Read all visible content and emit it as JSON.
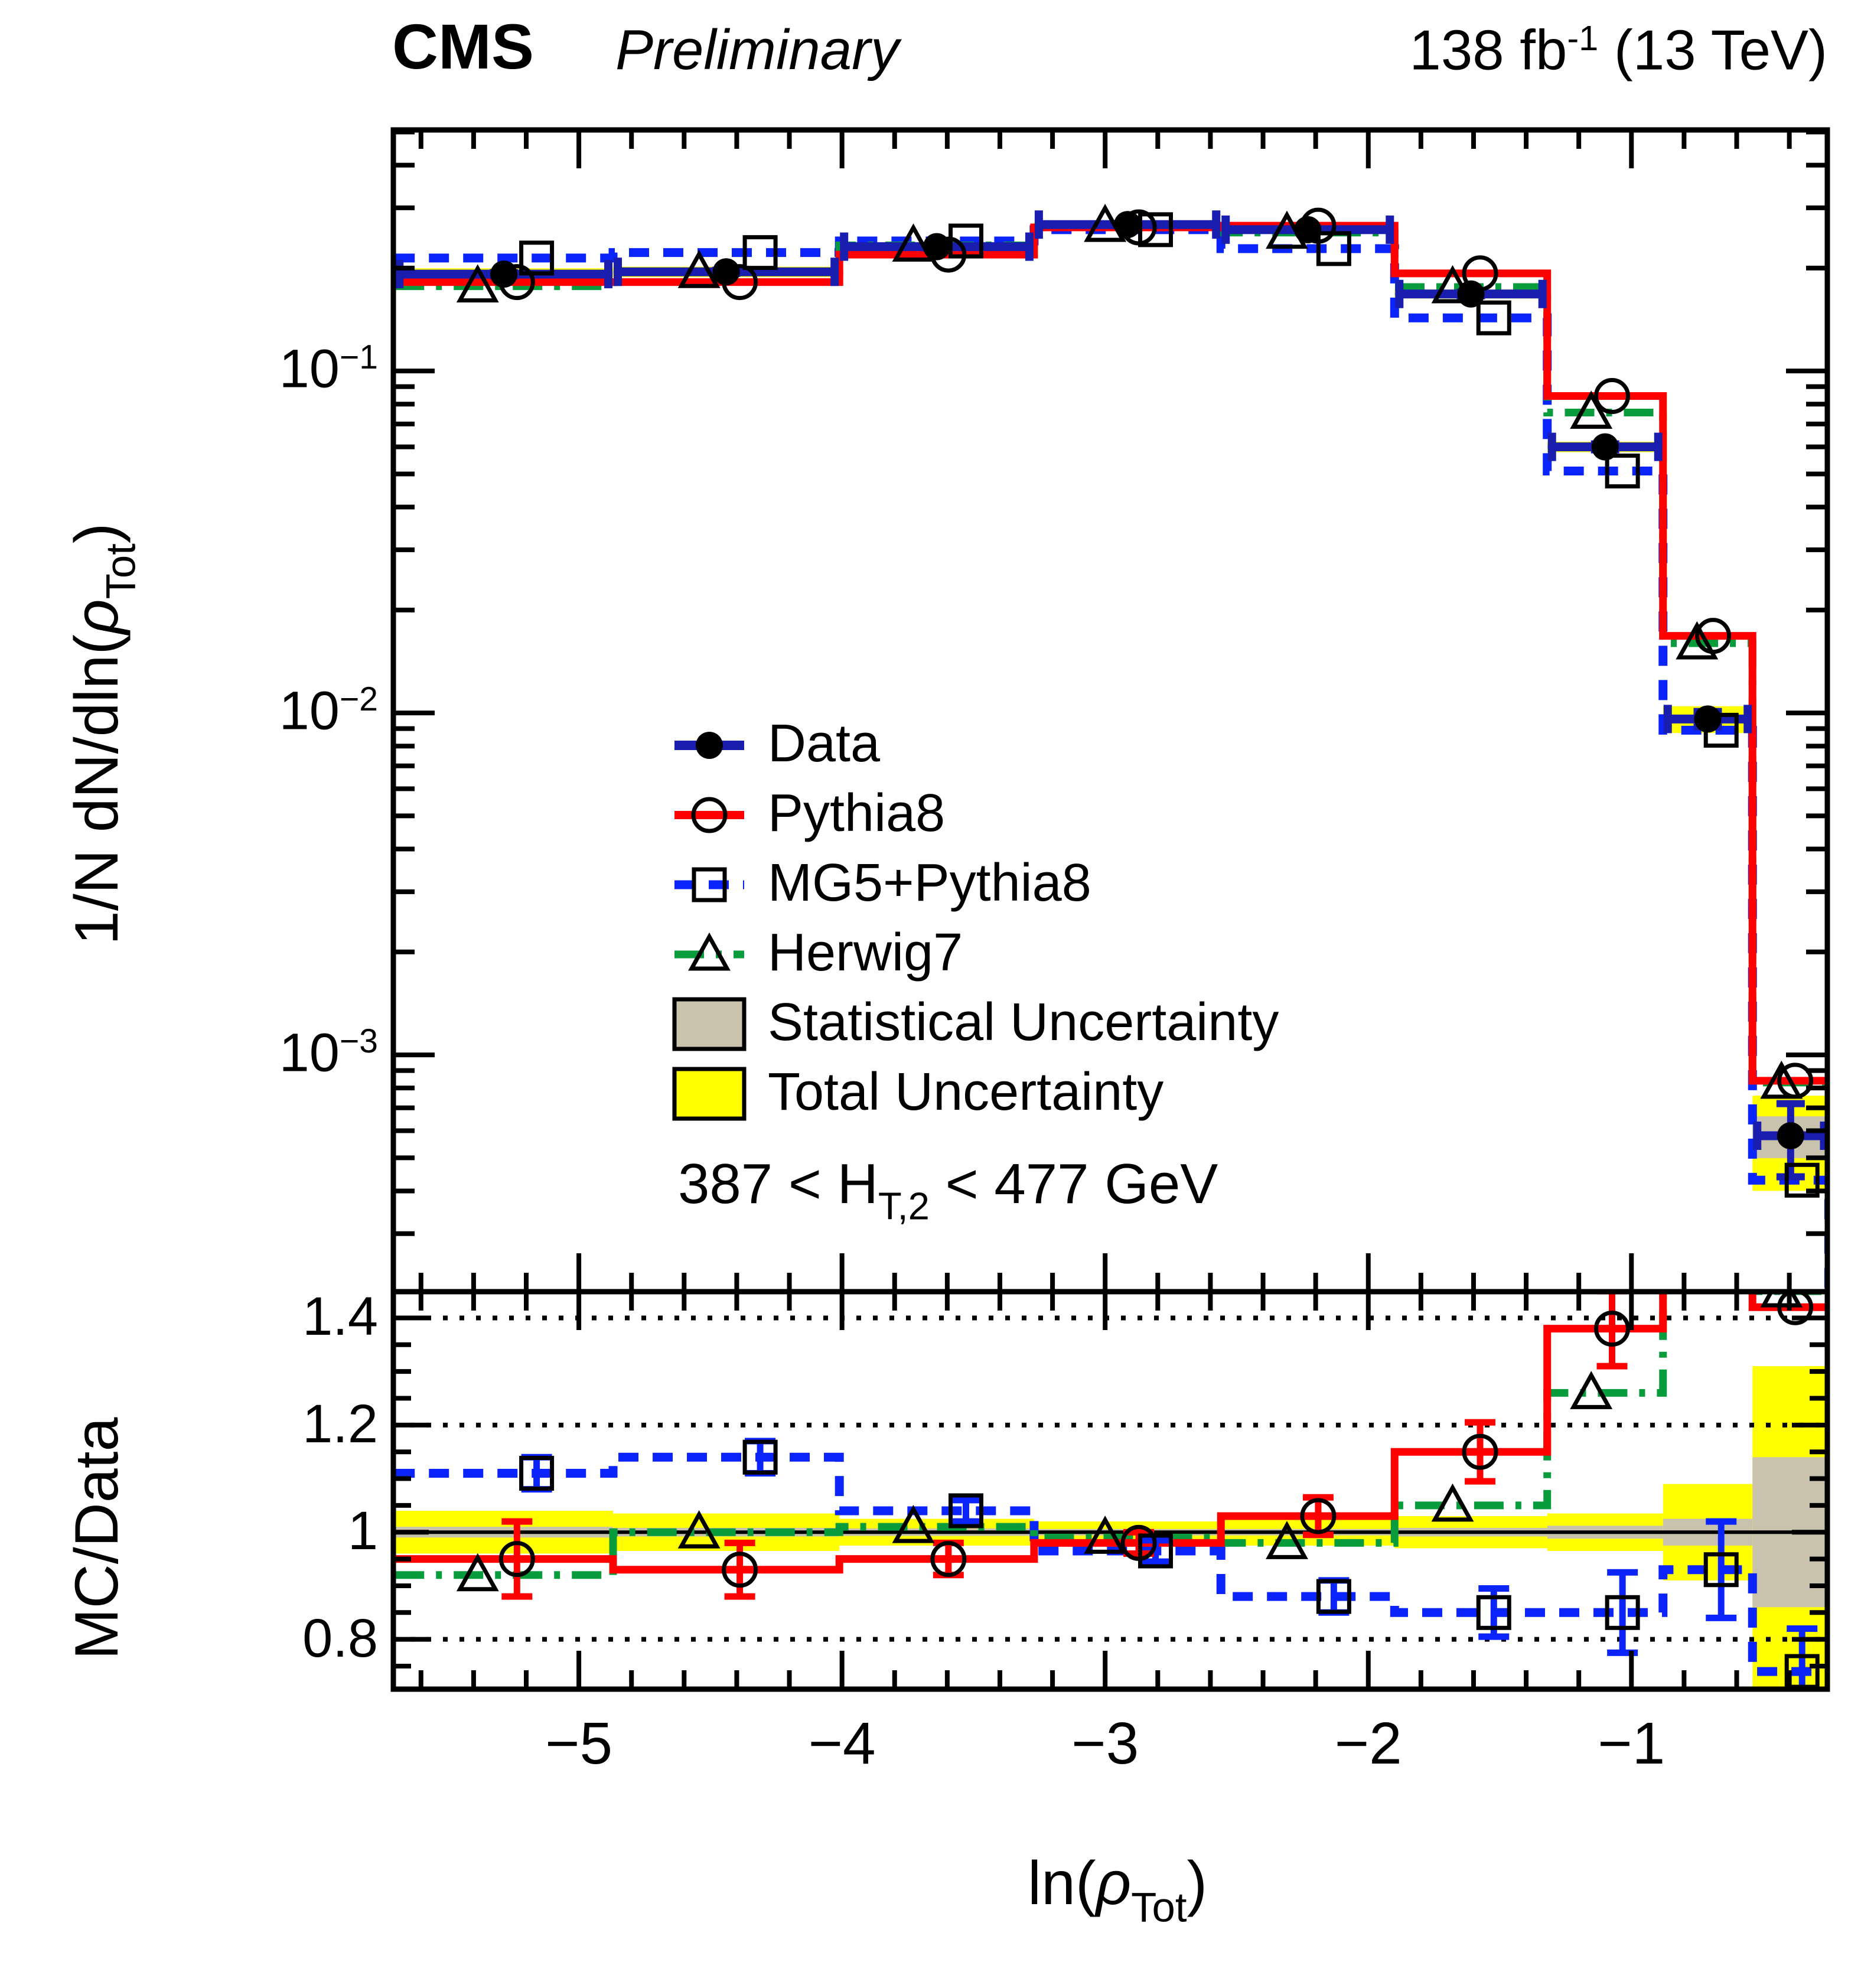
{
  "header": {
    "experiment": "CMS",
    "status": "Preliminary",
    "lumi_prefix": "138 fb",
    "lumi_sup": "-1",
    "lumi_suffix": " (13 TeV)"
  },
  "axes": {
    "y_title_prefix": "1/N dN/dln(",
    "y_title_rho": "ρ",
    "y_title_sub": "Tot",
    "y_title_close": ")",
    "x_title_prefix": "ln(",
    "x_title_rho": "ρ",
    "x_title_sub": "Tot",
    "x_title_close": ")",
    "ratio_y_title": "MC/Data"
  },
  "legend": {
    "items": [
      {
        "label": "Data"
      },
      {
        "label": "Pythia8"
      },
      {
        "label": "MG5+Pythia8"
      },
      {
        "label": "Herwig7"
      },
      {
        "label": "Statistical Uncertainty"
      },
      {
        "label": "Total Uncertainty"
      }
    ]
  },
  "selection": {
    "prefix": "387 < H",
    "sub": "T,2",
    "suffix": " < 477 GeV"
  },
  "chart_data": {
    "type": "step-histogram-with-ratio",
    "x": {
      "label": "ln(rho_Tot)",
      "lim": [
        -5.705,
        -0.2555
      ],
      "major_ticks": [
        -5,
        -4,
        -3,
        -2,
        -1
      ],
      "minor_step": 0.2
    },
    "y": {
      "label": "1/N dN/dln(rho_Tot)",
      "scale": "log",
      "lim": [
        0.000203,
        0.507
      ],
      "major_tick_exponents": [
        -1,
        -2,
        -3
      ]
    },
    "ratio_panel": {
      "label": "MC/Data",
      "lim": [
        0.707,
        1.449
      ],
      "major_ticks": [
        1.4,
        1.2,
        1.0,
        0.8
      ],
      "tick_labels": [
        "1.4",
        "1.2",
        "1",
        "0.8"
      ],
      "minor_step": 0.05,
      "dotted_gridlines": [
        0.8,
        1.2,
        1.4
      ],
      "solid_gridline": 1.0
    },
    "bin_edges": [
      -5.7,
      -4.87,
      -4.01,
      -3.27,
      -2.56,
      -1.9,
      -1.32,
      -0.88,
      -0.54,
      -0.25
    ],
    "series": [
      {
        "name": "Data",
        "color": "#1a1eae",
        "marker": "filled-circle",
        "marker_color": "#000000",
        "line": "solid",
        "values": [
          0.192,
          0.195,
          0.231,
          0.268,
          0.259,
          0.168,
          0.06,
          0.0096,
          0.00058
        ],
        "errors": [
          0.002,
          0.002,
          0.002,
          0.002,
          0.002,
          0.002,
          0.0012,
          0.0005,
          0.00014
        ]
      },
      {
        "name": "Pythia8",
        "color": "#ff0000",
        "marker": "open-circle",
        "line": "solid",
        "values": [
          0.182,
          0.182,
          0.219,
          0.263,
          0.266,
          0.193,
          0.0845,
          0.0168,
          0.00084
        ],
        "ratio": [
          0.95,
          0.93,
          0.95,
          0.98,
          1.03,
          1.15,
          1.38,
          1.75,
          1.42
        ],
        "ratio_errors": [
          0.07,
          0.05,
          0.03,
          0.02,
          0.035,
          0.055,
          0.07,
          0,
          0
        ]
      },
      {
        "name": "MG5+Pythia8",
        "color": "#0b24fa",
        "marker": "open-square",
        "line": "dashed",
        "values": [
          0.214,
          0.222,
          0.24,
          0.259,
          0.228,
          0.143,
          0.051,
          0.0089,
          0.00043
        ],
        "ratio": [
          1.11,
          1.14,
          1.04,
          0.965,
          0.88,
          0.85,
          0.85,
          0.93,
          0.74
        ],
        "ratio_errors": [
          0.03,
          0.03,
          0.02,
          0.02,
          0.03,
          0.045,
          0.075,
          0.09,
          0.08
        ]
      },
      {
        "name": "Herwig7",
        "color": "#089c3c",
        "marker": "open-triangle",
        "line": "dashdot",
        "values": [
          0.177,
          0.195,
          0.233,
          0.266,
          0.254,
          0.176,
          0.0756,
          0.016,
          0.00083
        ],
        "ratio": [
          0.92,
          1.0,
          1.01,
          0.99,
          0.98,
          1.05,
          1.26,
          1.67,
          1.45
        ],
        "ratio_errors": [
          0,
          0,
          0,
          0,
          0,
          0,
          0,
          0,
          0
        ]
      }
    ],
    "uncertainties": {
      "total_fractional": [
        0.04,
        0.035,
        0.025,
        0.02,
        0.025,
        0.03,
        0.035,
        0.09,
        0.31
      ],
      "statistical_fractional": [
        0.01,
        0.008,
        0.007,
        0.006,
        0.006,
        0.008,
        0.012,
        0.025,
        0.14
      ],
      "total_color": "#ffff00",
      "statistical_color": "#c9c3ae"
    }
  }
}
